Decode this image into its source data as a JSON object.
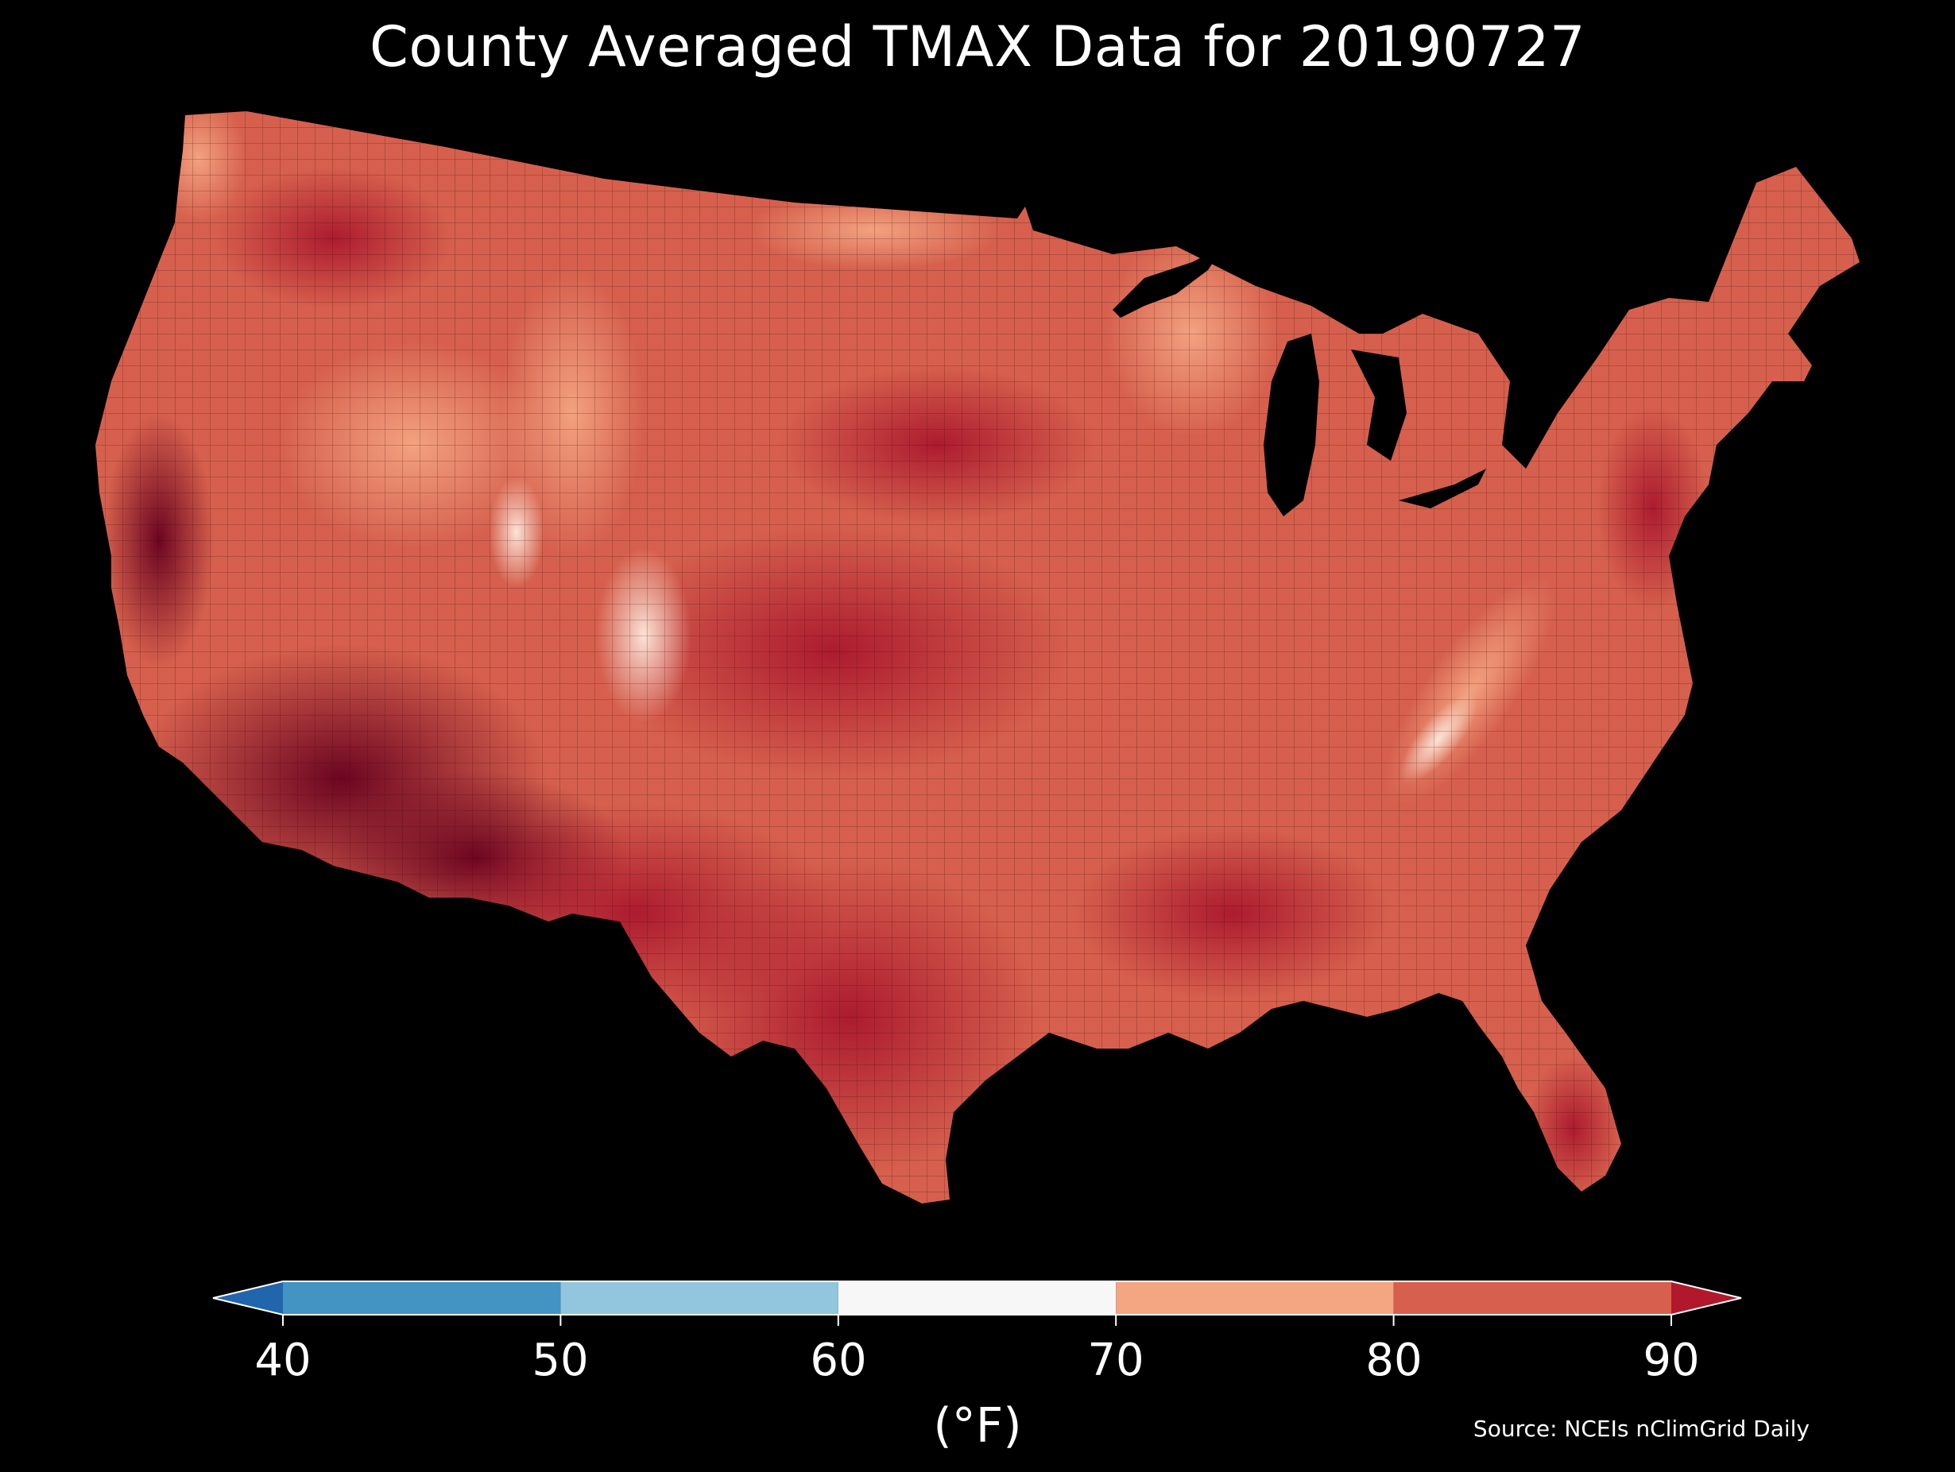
{
  "title": "County Averaged TMAX Data for 20190727",
  "colorbar": {
    "label": "(°F)",
    "ticks": [
      "40",
      "50",
      "60",
      "70",
      "80",
      "90"
    ],
    "bins": [
      {
        "from": 30,
        "to": 40,
        "color": "#2166ac",
        "extend": "min"
      },
      {
        "from": 40,
        "to": 50,
        "color": "#4393c3"
      },
      {
        "from": 50,
        "to": 60,
        "color": "#92c5de"
      },
      {
        "from": 60,
        "to": 70,
        "color": "#f7f7f7"
      },
      {
        "from": 70,
        "to": 80,
        "color": "#f4a582"
      },
      {
        "from": 80,
        "to": 90,
        "color": "#d6604d"
      },
      {
        "from": 90,
        "to": 100,
        "color": "#b2182b",
        "extend": "max"
      }
    ]
  },
  "source": "Source: NCEIs nClimGrid Daily",
  "map": {
    "region": "Contiguous United States (county level)",
    "palette": {
      "hot": "#67001f",
      "warm": "#b2182b",
      "mild": "#d6604d",
      "cool": "#f4a582",
      "pale": "#fddbc7",
      "white": "#f7f7f7"
    }
  }
}
